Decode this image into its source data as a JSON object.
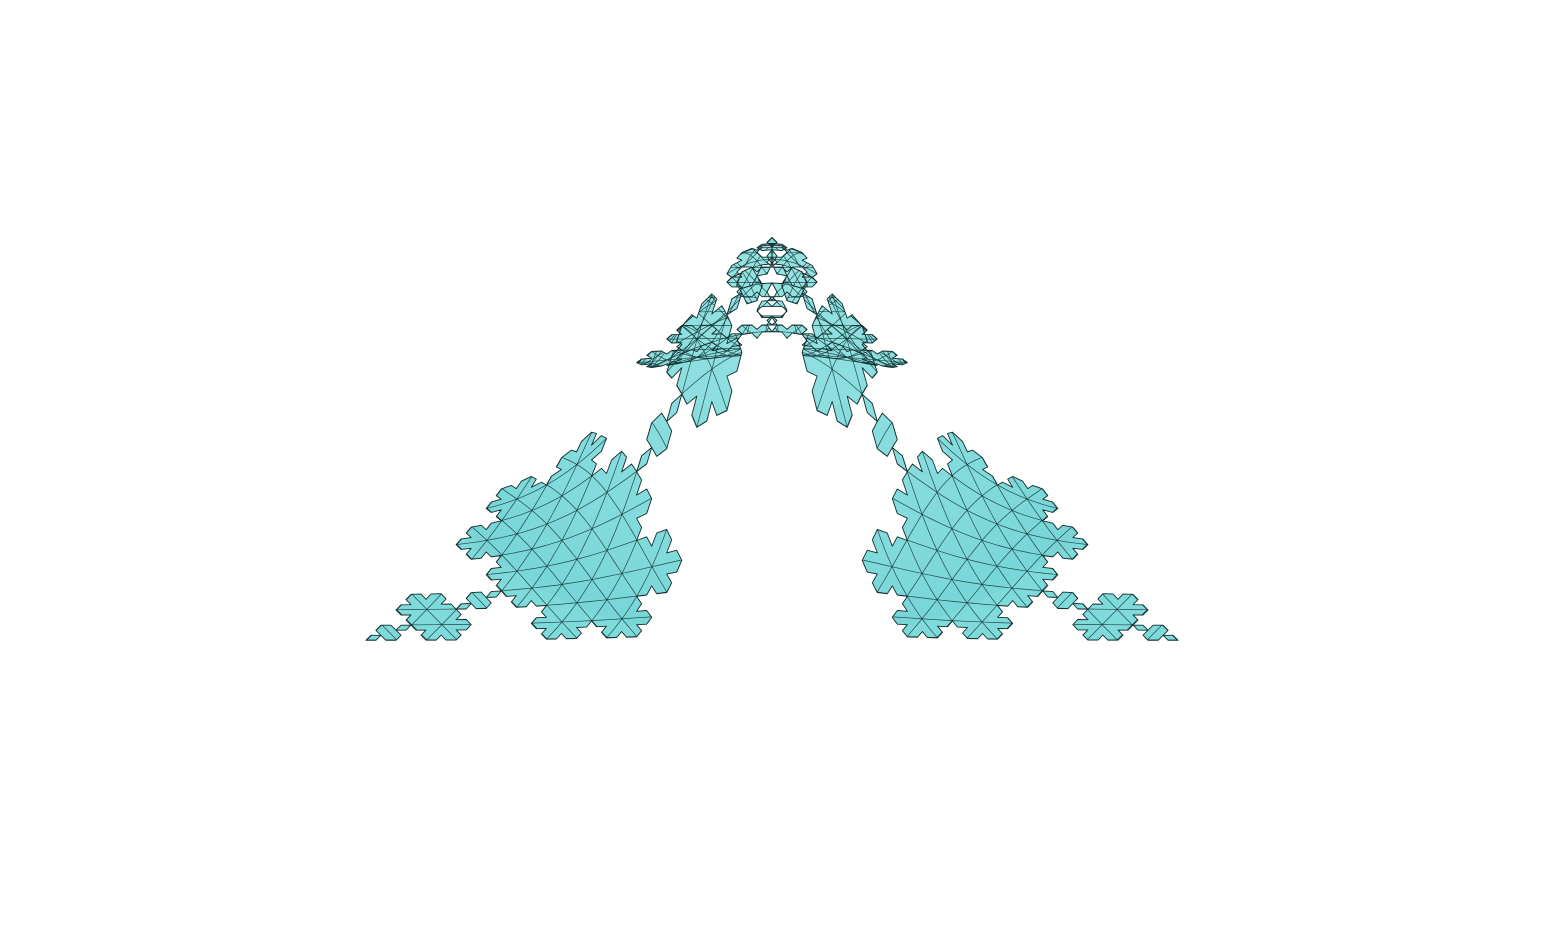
{
  "scene": {
    "background_color": "#ffffff",
    "surface_color": "#7fdadc",
    "mesh_line_color": "#10302f",
    "shadow_color": "#0e2a2a",
    "boundary": "koch-snowflake",
    "mesh": "triangular",
    "surface_shape": "central-bump",
    "icon": "koch-snowflake-surface-icon"
  }
}
